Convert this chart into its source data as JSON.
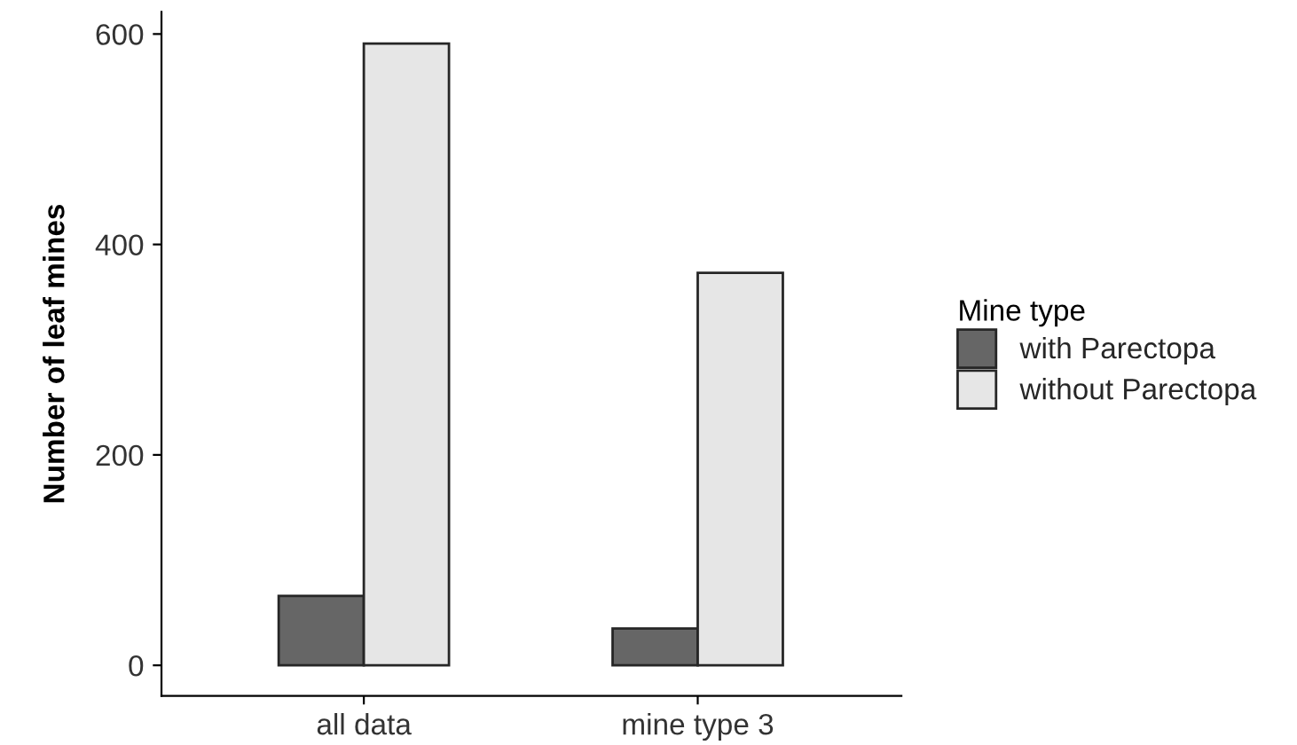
{
  "chart_data": {
    "type": "bar",
    "ylabel": "Number of leaf mines",
    "legend_title": "Mine type",
    "categories": [
      "all data",
      "mine type 3"
    ],
    "series": [
      {
        "name": "with Parectopa",
        "color": "#666666",
        "values": [
          66,
          35
        ]
      },
      {
        "name": "without Parectopa",
        "color": "#e6e6e6",
        "values": [
          591,
          373
        ]
      }
    ],
    "ylim": [
      -29,
      621
    ],
    "yticks": [
      0,
      200,
      400,
      600
    ],
    "grid": false,
    "legend": "right"
  }
}
